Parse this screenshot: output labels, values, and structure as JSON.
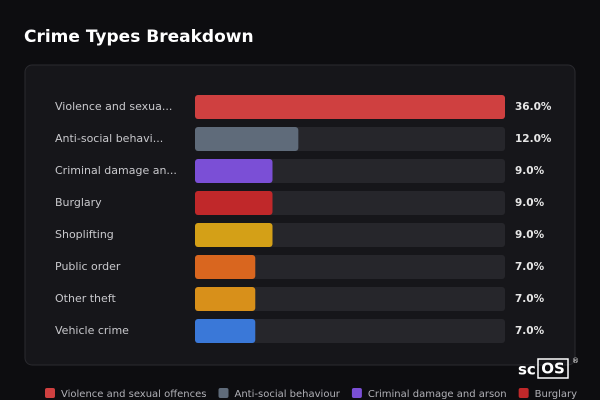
{
  "chart_data": {
    "type": "bar",
    "title": "Crime Types Breakdown",
    "categories": [
      "Violence and sexua...",
      "Anti-social behavi...",
      "Criminal damage an...",
      "Burglary",
      "Shoplifting",
      "Public order",
      "Other theft",
      "Vehicle crime"
    ],
    "values": [
      36,
      12,
      9,
      9,
      9,
      7,
      7,
      7
    ],
    "value_labels": [
      "36.0%",
      "12.0%",
      "9.0%",
      "9.0%",
      "9.0%",
      "7.0%",
      "7.0%",
      "7.0%"
    ],
    "colors": [
      "#cf4040",
      "#5f6b7a",
      "#7b4fd6",
      "#c0282a",
      "#d4a017",
      "#d9661f",
      "#d8901a",
      "#3a78d8"
    ],
    "legend": [
      "Violence and sexual offences",
      "Anti-social behaviour",
      "Criminal damage and arson",
      "Burglary"
    ]
  },
  "logo": {
    "left": "sc",
    "right": "OS",
    "mark": "®"
  }
}
